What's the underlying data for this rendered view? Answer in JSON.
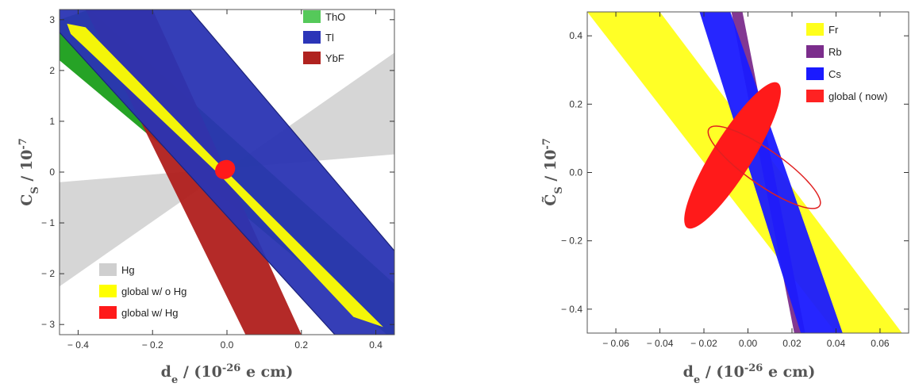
{
  "chart_data": [
    {
      "type": "area",
      "xlabel": "d_e / (10^-26 e cm)",
      "ylabel": "C_S / 10^-7",
      "xlim": [
        -0.45,
        0.45
      ],
      "ylim": [
        -3.2,
        3.2
      ],
      "xticks": [
        -0.4,
        -0.2,
        0.0,
        0.2,
        0.4
      ],
      "xtick_labels": [
        "− 0.4",
        "− 0.2",
        "0.0",
        "0.2",
        "0.4"
      ],
      "yticks": [
        -3,
        -2,
        -1,
        0,
        1,
        2,
        3
      ],
      "ytick_labels": [
        "− 3",
        "− 2",
        "− 1",
        "0",
        "1",
        "2",
        "3"
      ],
      "legend_top": [
        {
          "name": "ThO",
          "color": "#55c95a"
        },
        {
          "name": "Tl",
          "color": "#2b35b8"
        },
        {
          "name": "YbF",
          "color": "#b0221f"
        }
      ],
      "legend_bottom": [
        {
          "name": "Hg",
          "color": "#cfcfcf"
        },
        {
          "name": "global w/ o Hg",
          "color": "#ffff00"
        },
        {
          "name": "global w/  Hg",
          "color": "#ff1a1a"
        }
      ],
      "series": [
        {
          "name": "Hg",
          "color": "#cfcfcf",
          "polygon": [
            [
              -0.45,
              -0.2
            ],
            [
              0.45,
              0.35
            ],
            [
              0.45,
              2.35
            ],
            [
              -0.45,
              -2.25
            ]
          ]
        },
        {
          "name": "ThO",
          "color": "#1a9e1a",
          "polygon": [
            [
              -0.45,
              3.0
            ],
            [
              -0.37,
              3.2
            ],
            [
              0.45,
              -2.2
            ],
            [
              0.45,
              -3.2
            ],
            [
              0.43,
              -3.2
            ],
            [
              -0.45,
              2.2
            ]
          ]
        },
        {
          "name": "YbF",
          "color": "#b01f1c",
          "polygon": [
            [
              -0.38,
              3.2
            ],
            [
              -0.2,
              3.2
            ],
            [
              0.2,
              -3.2
            ],
            [
              0.05,
              -3.2
            ]
          ]
        },
        {
          "name": "Tl",
          "color": "#2a34b3",
          "polygon": [
            [
              -0.1,
              3.2
            ],
            [
              0.45,
              -1.55
            ],
            [
              0.45,
              -3.2
            ],
            [
              0.29,
              -3.2
            ],
            [
              -0.45,
              2.75
            ],
            [
              -0.45,
              3.2
            ]
          ]
        },
        {
          "name": "global w/ o Hg",
          "color": "#ffff00",
          "polygon": [
            [
              -0.43,
              2.92
            ],
            [
              -0.38,
              2.85
            ],
            [
              0.0,
              0.0
            ],
            [
              0.42,
              -3.05
            ],
            [
              0.34,
              -2.85
            ],
            [
              -0.02,
              -0.05
            ],
            [
              -0.42,
              2.72
            ]
          ]
        },
        {
          "name": "global w/  Hg",
          "color": "#ff1a1a",
          "ellipse": {
            "cx": -0.005,
            "cy": 0.05,
            "rx": 0.028,
            "ry": 0.18,
            "angle_deg": -35
          }
        }
      ]
    },
    {
      "type": "area",
      "xlabel": "d_e / (10^-26 e cm)",
      "ylabel": "C̃_S / 10^-7",
      "xlim": [
        -0.073,
        0.073
      ],
      "ylim": [
        -0.47,
        0.47
      ],
      "xticks": [
        -0.06,
        -0.04,
        -0.02,
        0.0,
        0.02,
        0.04,
        0.06
      ],
      "xtick_labels": [
        "− 0.06",
        "− 0.04",
        "− 0.02",
        "0.00",
        "0.02",
        "0.04",
        "0.06"
      ],
      "yticks": [
        -0.4,
        -0.2,
        0.0,
        0.2,
        0.4
      ],
      "ytick_labels": [
        "− 0.4",
        "− 0.2",
        "0.0",
        "0.2",
        "0.4"
      ],
      "legend": [
        {
          "name": "Fr",
          "color": "#ffff1a"
        },
        {
          "name": "Rb",
          "color": "#7b2d8c"
        },
        {
          "name": "Cs",
          "color": "#1a1aff"
        },
        {
          "name": "global ( now)",
          "color": "#ff2222"
        }
      ],
      "series": [
        {
          "name": "Fr",
          "color": "#ffff1a",
          "polygon": [
            [
              -0.073,
              0.47
            ],
            [
              -0.04,
              0.47
            ],
            [
              0.07,
              -0.47
            ],
            [
              0.04,
              -0.47
            ]
          ]
        },
        {
          "name": "Rb",
          "color": "#7b2d8c",
          "polygon": [
            [
              -0.0075,
              0.47
            ],
            [
              -0.0025,
              0.47
            ],
            [
              0.026,
              -0.47
            ],
            [
              0.021,
              -0.47
            ]
          ]
        },
        {
          "name": "Cs",
          "color": "#1a1aff",
          "polygon": [
            [
              -0.022,
              0.47
            ],
            [
              -0.008,
              0.47
            ],
            [
              0.043,
              -0.47
            ],
            [
              0.024,
              -0.47
            ]
          ]
        },
        {
          "name": "global ( now)",
          "color": "#ff1a1a",
          "ellipse": {
            "cx": -0.007,
            "cy": 0.05,
            "rx": 0.009,
            "ry": 0.25,
            "angle_deg": -58
          }
        }
      ]
    }
  ]
}
